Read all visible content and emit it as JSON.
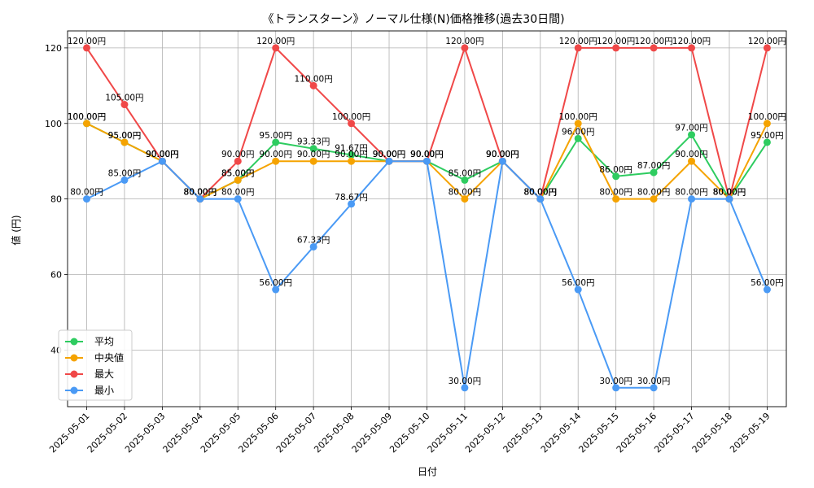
{
  "chart_data": {
    "type": "line",
    "title": "《トランスターン》ノーマル仕様(N)価格推移(過去30日間)",
    "xlabel": "日付",
    "ylabel": "値 (円)",
    "categories": [
      "2025-05-01",
      "2025-05-02",
      "2025-05-03",
      "2025-05-04",
      "2025-05-05",
      "2025-05-06",
      "2025-05-07",
      "2025-05-08",
      "2025-05-09",
      "2025-05-10",
      "2025-05-11",
      "2025-05-12",
      "2025-05-13",
      "2025-05-14",
      "2025-05-15",
      "2025-05-16",
      "2025-05-17",
      "2025-05-18",
      "2025-05-19"
    ],
    "yticks": [
      40,
      60,
      80,
      100,
      120
    ],
    "ylim": [
      25,
      124.5
    ],
    "grid": true,
    "legend_position": "lower-left",
    "series": [
      {
        "name": "平均",
        "color": "#2ecc60",
        "values": [
          100,
          95,
          90,
          80,
          85,
          95,
          93.33,
          91.67,
          90,
          90,
          85,
          90,
          80,
          96,
          86,
          87,
          97,
          80,
          95
        ],
        "labels": [
          "100.00円",
          "95.00円",
          "90.00円",
          "80.00円",
          "85.00円",
          "95.00円",
          "93.33円",
          "91.67円",
          "90.00円",
          "90.00円",
          "85.00円",
          "90.00円",
          "80.00円",
          "96.00円",
          "86.00円",
          "87.00円",
          "97.00円",
          "80.00円",
          "95.00円"
        ]
      },
      {
        "name": "中央値",
        "color": "#f5a300",
        "values": [
          100,
          95,
          90,
          80,
          85,
          90,
          90,
          90,
          90,
          90,
          80,
          90,
          80,
          100,
          80,
          80,
          90,
          80,
          100
        ],
        "labels": [
          "100.00円",
          "95.00円",
          "90.00円",
          "80.00円",
          "85.00円",
          "90.00円",
          "90.00円",
          "90.00円",
          "90.00円",
          "90.00円",
          "80.00円",
          "90.00円",
          "80.00円",
          "100.00円",
          "80.00円",
          "80.00円",
          "90.00円",
          "80.00円",
          "100.00円"
        ]
      },
      {
        "name": "最大",
        "color": "#f04848",
        "values": [
          120,
          105,
          90,
          80,
          90,
          120,
          110,
          100,
          90,
          90,
          120,
          90,
          80,
          120,
          120,
          120,
          120,
          80,
          120
        ],
        "labels": [
          "120.00円",
          "105.00円",
          "90.00円",
          "80.00円",
          "90.00円",
          "120.00円",
          "110.00円",
          "100.00円",
          "90.00円",
          "90.00円",
          "120.00円",
          "90.00円",
          "80.00円",
          "120.00円",
          "120.00円",
          "120.00円",
          "120.00円",
          "80.00円",
          "120.00円"
        ]
      },
      {
        "name": "最小",
        "color": "#4a9af5",
        "values": [
          80,
          85,
          90,
          80,
          80,
          56,
          67.33,
          78.67,
          90,
          90,
          30,
          90,
          80,
          56,
          30,
          30,
          80,
          80,
          56
        ],
        "labels": [
          "80.00円",
          "85.00円",
          "90.00円",
          "80.00円",
          "80.00円",
          "56.00円",
          "67.33円",
          "78.67円",
          "90.00円",
          "90.00円",
          "30.00円",
          "90.00円",
          "80.00円",
          "56.00円",
          "30.00円",
          "30.00円",
          "80.00円",
          "80.00円",
          "56.00円"
        ]
      }
    ]
  }
}
